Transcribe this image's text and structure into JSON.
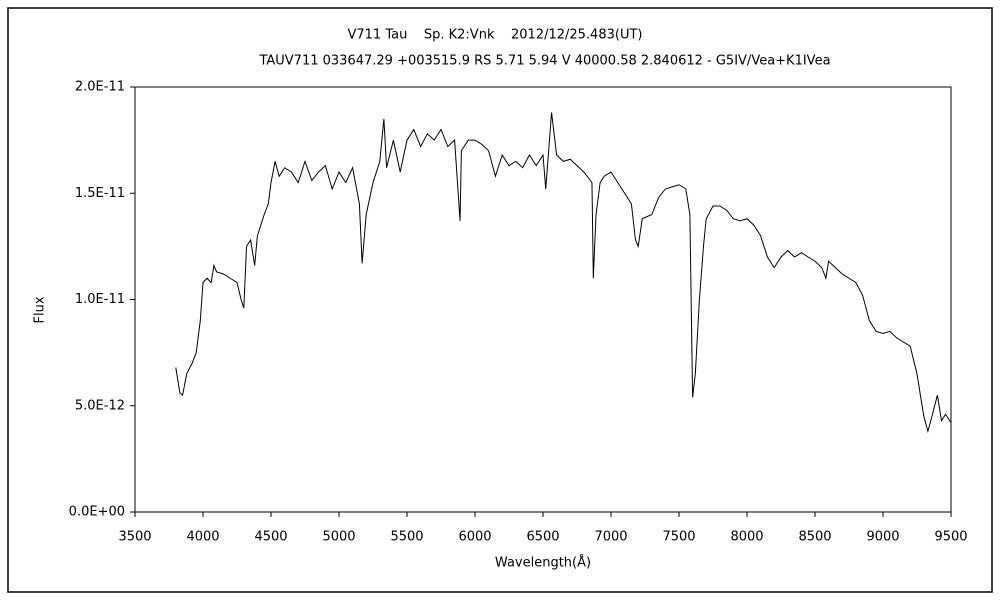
{
  "chart_data": {
    "type": "line",
    "title": "V711 Tau    Sp. K2:Vnk    2012/12/25.483(UT)",
    "subtitle": "TAUV711 033647.29 +003515.9 RS 5.71 5.94 V 40000.58 2.840612 - G5IV/Vea+K1IVea",
    "x_label": "Wavelength(Å)",
    "y_label": "Flux",
    "xlim": [
      3500,
      9500
    ],
    "xticks": [
      3500,
      4000,
      4500,
      5000,
      5500,
      6000,
      6500,
      7000,
      7500,
      8000,
      8500,
      9000,
      9500
    ],
    "ylim": [
      0,
      2e-11
    ],
    "yticks": [
      {
        "value": 0,
        "label": "0.0E+00"
      },
      {
        "value": 5e-12,
        "label": "5.0E-12"
      },
      {
        "value": 1e-11,
        "label": "1.0E-11"
      },
      {
        "value": 1.5e-11,
        "label": "1.5E-11"
      },
      {
        "value": 2e-11,
        "label": "2.0E-11"
      }
    ],
    "grid": false,
    "series": [
      {
        "color": "#000000",
        "x": [
          3800,
          3830,
          3850,
          3880,
          3920,
          3950,
          3980,
          4000,
          4030,
          4060,
          4080,
          4100,
          4150,
          4200,
          4250,
          4280,
          4300,
          4320,
          4350,
          4380,
          4400,
          4450,
          4480,
          4500,
          4530,
          4560,
          4600,
          4650,
          4700,
          4750,
          4800,
          4850,
          4900,
          4950,
          5000,
          5050,
          5100,
          5150,
          5170,
          5200,
          5250,
          5300,
          5330,
          5350,
          5400,
          5450,
          5500,
          5550,
          5600,
          5650,
          5700,
          5750,
          5800,
          5850,
          5890,
          5900,
          5950,
          6000,
          6050,
          6100,
          6150,
          6200,
          6250,
          6300,
          6350,
          6400,
          6450,
          6500,
          6520,
          6563,
          6600,
          6650,
          6700,
          6750,
          6800,
          6860,
          6870,
          6890,
          6920,
          6950,
          7000,
          7050,
          7100,
          7150,
          7180,
          7200,
          7230,
          7300,
          7350,
          7400,
          7450,
          7500,
          7550,
          7580,
          7600,
          7620,
          7650,
          7680,
          7700,
          7750,
          7800,
          7850,
          7900,
          7950,
          8000,
          8050,
          8100,
          8150,
          8200,
          8250,
          8300,
          8350,
          8400,
          8450,
          8500,
          8550,
          8580,
          8600,
          8650,
          8700,
          8750,
          8800,
          8850,
          8900,
          8950,
          9000,
          9050,
          9100,
          9150,
          9200,
          9250,
          9300,
          9330,
          9360,
          9400,
          9430,
          9460,
          9500
        ],
        "values": [
          6.8e-12,
          5.6e-12,
          5.5e-12,
          6.5e-12,
          7e-12,
          7.5e-12,
          9e-12,
          1.08e-11,
          1.1e-11,
          1.08e-11,
          1.16e-11,
          1.13e-11,
          1.12e-11,
          1.1e-11,
          1.08e-11,
          1e-11,
          9.6e-12,
          1.25e-11,
          1.28e-11,
          1.16e-11,
          1.3e-11,
          1.4e-11,
          1.45e-11,
          1.55e-11,
          1.65e-11,
          1.58e-11,
          1.62e-11,
          1.6e-11,
          1.55e-11,
          1.65e-11,
          1.56e-11,
          1.6e-11,
          1.63e-11,
          1.52e-11,
          1.6e-11,
          1.55e-11,
          1.62e-11,
          1.45e-11,
          1.17e-11,
          1.4e-11,
          1.55e-11,
          1.65e-11,
          1.85e-11,
          1.62e-11,
          1.75e-11,
          1.6e-11,
          1.75e-11,
          1.8e-11,
          1.72e-11,
          1.78e-11,
          1.75e-11,
          1.8e-11,
          1.72e-11,
          1.75e-11,
          1.37e-11,
          1.7e-11,
          1.75e-11,
          1.75e-11,
          1.73e-11,
          1.7e-11,
          1.58e-11,
          1.68e-11,
          1.63e-11,
          1.65e-11,
          1.62e-11,
          1.68e-11,
          1.63e-11,
          1.68e-11,
          1.52e-11,
          1.88e-11,
          1.68e-11,
          1.65e-11,
          1.66e-11,
          1.63e-11,
          1.6e-11,
          1.55e-11,
          1.1e-11,
          1.4e-11,
          1.55e-11,
          1.58e-11,
          1.6e-11,
          1.55e-11,
          1.5e-11,
          1.45e-11,
          1.28e-11,
          1.25e-11,
          1.38e-11,
          1.4e-11,
          1.48e-11,
          1.52e-11,
          1.53e-11,
          1.54e-11,
          1.52e-11,
          1.4e-11,
          5.4e-12,
          6.5e-12,
          1e-11,
          1.25e-11,
          1.38e-11,
          1.44e-11,
          1.44e-11,
          1.42e-11,
          1.38e-11,
          1.37e-11,
          1.38e-11,
          1.35e-11,
          1.3e-11,
          1.2e-11,
          1.15e-11,
          1.2e-11,
          1.23e-11,
          1.2e-11,
          1.22e-11,
          1.2e-11,
          1.18e-11,
          1.15e-11,
          1.1e-11,
          1.18e-11,
          1.15e-11,
          1.12e-11,
          1.1e-11,
          1.08e-11,
          1.02e-11,
          9e-12,
          8.5e-12,
          8.4e-12,
          8.5e-12,
          8.2e-12,
          8e-12,
          7.8e-12,
          6.5e-12,
          4.5e-12,
          3.8e-12,
          4.5e-12,
          5.5e-12,
          4.3e-12,
          4.6e-12,
          4.2e-12
        ]
      }
    ]
  }
}
